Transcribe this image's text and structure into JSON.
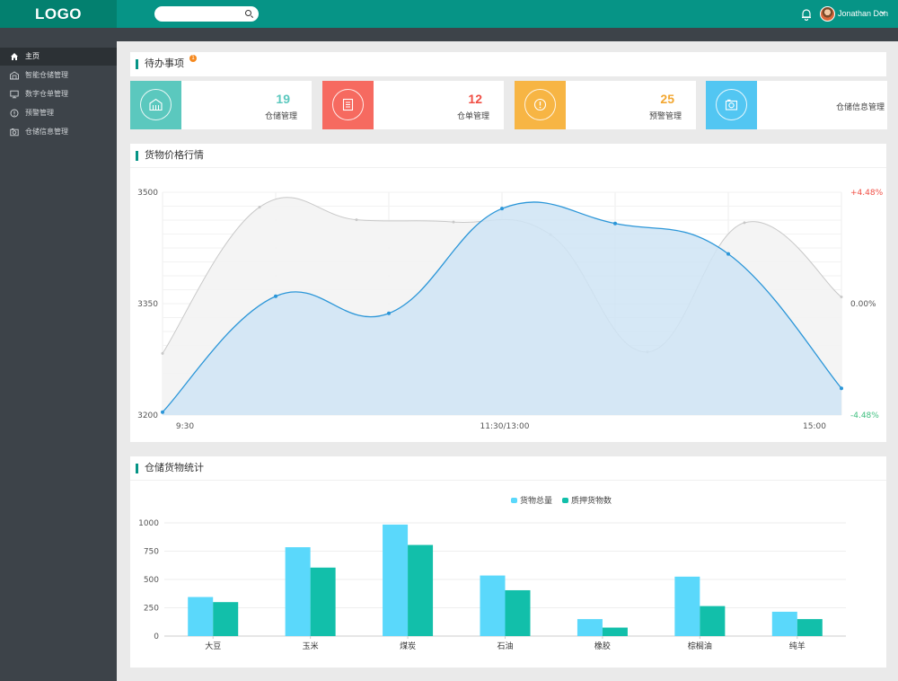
{
  "header": {
    "logo": "LOGO",
    "search_placeholder": "",
    "user_name": "Jonathan Don"
  },
  "sidebar": {
    "items": [
      {
        "label": "主页",
        "icon": "home-icon",
        "active": true
      },
      {
        "label": "智能仓储管理",
        "icon": "warehouse-icon",
        "active": false
      },
      {
        "label": "数字仓单管理",
        "icon": "monitor-icon",
        "active": false
      },
      {
        "label": "预警管理",
        "icon": "alert-icon",
        "active": false
      },
      {
        "label": "仓储信息管理",
        "icon": "camera-icon",
        "active": false
      }
    ]
  },
  "todo": {
    "title": "待办事项",
    "badge": "1",
    "cards": [
      {
        "value": "19",
        "label": "仓储管理",
        "color": "#5bc8be",
        "num_color": "#5bc8be",
        "icon": "warehouse-icon"
      },
      {
        "value": "12",
        "label": "仓单管理",
        "color": "#f66a60",
        "num_color": "#f04e44",
        "icon": "document-icon"
      },
      {
        "value": "25",
        "label": "预警管理",
        "color": "#f7b544",
        "num_color": "#f2a732",
        "icon": "alert-icon"
      },
      {
        "value": "",
        "label": "仓储信息管理",
        "color": "#52c6f2",
        "num_color": "#52c6f2",
        "icon": "camera-icon"
      }
    ]
  },
  "price_panel": {
    "title": "货物价格行情"
  },
  "stock_panel": {
    "title": "仓储货物统计"
  },
  "chart_data": [
    {
      "type": "area",
      "title": "货物价格行情",
      "ylim": [
        3200,
        3500
      ],
      "yticks": [
        "3500",
        "3350",
        "3200"
      ],
      "right_ticks": [
        {
          "label": "+4.48%",
          "color": "#f04e44"
        },
        {
          "label": "0.00%",
          "color": "#555555"
        },
        {
          "label": "-4.48%",
          "color": "#3fbf7f"
        }
      ],
      "xtick_labels": [
        "9:30",
        "11:30/13:00",
        "15:00"
      ],
      "grid": true,
      "series": [
        {
          "values": [
            3283,
            3480,
            3463,
            3460,
            3443,
            3285,
            3459,
            3359
          ],
          "color": "#c8c8c8",
          "fill": "#f3f3f3"
        },
        {
          "values": [
            3204,
            3360,
            3337,
            3478,
            3458,
            3417,
            3236
          ],
          "color": "#2b96d8",
          "fill": "#cfe4f5"
        }
      ]
    },
    {
      "type": "bar",
      "title": "仓储货物统计",
      "categories": [
        "大豆",
        "玉米",
        "煤炭",
        "石油",
        "橡胶",
        "棕榈油",
        "纯羊"
      ],
      "ylim": [
        0,
        1000
      ],
      "yticks": [
        0,
        250,
        500,
        750,
        1000
      ],
      "legend_position": "top-center",
      "series": [
        {
          "name": "货物总量",
          "values": [
            345,
            785,
            985,
            535,
            150,
            525,
            215
          ],
          "color": "#5ad8fb"
        },
        {
          "name": "质押货物数",
          "values": [
            300,
            605,
            805,
            405,
            75,
            265,
            150
          ],
          "color": "#12bfaa"
        }
      ]
    }
  ]
}
